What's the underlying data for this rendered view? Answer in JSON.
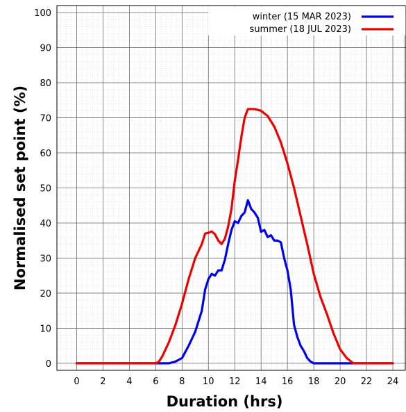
{
  "chart_data": {
    "type": "line",
    "xlabel": "Duration (hrs)",
    "ylabel": "Normalised set point (%)",
    "xlim": [
      -1.5,
      25.0
    ],
    "ylim": [
      -2,
      102
    ],
    "xticks": [
      0,
      2,
      4,
      6,
      8,
      10,
      12,
      14,
      16,
      18,
      20,
      22,
      24
    ],
    "yticks": [
      0,
      10,
      20,
      30,
      40,
      50,
      60,
      70,
      80,
      90,
      100
    ],
    "grid": true,
    "minor_grid": true,
    "legend_position": "top-right",
    "series": [
      {
        "name": "winter (15 MAR 2023)",
        "color": "#0000ee",
        "points": [
          [
            0,
            0
          ],
          [
            6,
            0
          ],
          [
            7,
            0
          ],
          [
            7.5,
            0.5
          ],
          [
            8,
            1.5
          ],
          [
            8.5,
            5
          ],
          [
            9,
            9
          ],
          [
            9.5,
            15
          ],
          [
            9.75,
            21
          ],
          [
            10,
            24
          ],
          [
            10.25,
            25.5
          ],
          [
            10.5,
            25
          ],
          [
            10.75,
            26.5
          ],
          [
            11,
            26.5
          ],
          [
            11.25,
            29.5
          ],
          [
            11.5,
            34
          ],
          [
            11.75,
            38
          ],
          [
            12,
            40.5
          ],
          [
            12.25,
            40
          ],
          [
            12.5,
            42
          ],
          [
            12.75,
            43
          ],
          [
            13,
            46.5
          ],
          [
            13.25,
            44
          ],
          [
            13.5,
            43
          ],
          [
            13.75,
            41.5
          ],
          [
            14,
            37.5
          ],
          [
            14.25,
            38
          ],
          [
            14.5,
            36
          ],
          [
            14.75,
            36.5
          ],
          [
            15,
            35
          ],
          [
            15.25,
            35
          ],
          [
            15.5,
            34.5
          ],
          [
            15.75,
            30
          ],
          [
            16,
            26.5
          ],
          [
            16.25,
            21
          ],
          [
            16.5,
            11
          ],
          [
            16.75,
            7.5
          ],
          [
            17,
            5
          ],
          [
            17.25,
            3.5
          ],
          [
            17.5,
            1.5
          ],
          [
            17.75,
            0.5
          ],
          [
            18,
            0
          ],
          [
            18.5,
            0
          ],
          [
            19,
            0
          ],
          [
            24,
            0
          ]
        ]
      },
      {
        "name": "summer (18 JUL 2023)",
        "color": "#ee0000",
        "points": [
          [
            0,
            0
          ],
          [
            6,
            0
          ],
          [
            6.25,
            0.5
          ],
          [
            6.5,
            2
          ],
          [
            7,
            6
          ],
          [
            7.5,
            11
          ],
          [
            8,
            17
          ],
          [
            8.5,
            24
          ],
          [
            9,
            30
          ],
          [
            9.5,
            34
          ],
          [
            9.75,
            37
          ],
          [
            10,
            37.2
          ],
          [
            10.25,
            37.6
          ],
          [
            10.5,
            36.8
          ],
          [
            10.75,
            35
          ],
          [
            11,
            34
          ],
          [
            11.25,
            35.5
          ],
          [
            11.5,
            39
          ],
          [
            11.75,
            44
          ],
          [
            12,
            52
          ],
          [
            12.25,
            58
          ],
          [
            12.5,
            64.5
          ],
          [
            12.75,
            70
          ],
          [
            13,
            72.5
          ],
          [
            13.5,
            72.5
          ],
          [
            14,
            72
          ],
          [
            14.5,
            70.5
          ],
          [
            15,
            67.5
          ],
          [
            15.5,
            63
          ],
          [
            16,
            57
          ],
          [
            16.5,
            50
          ],
          [
            17,
            42
          ],
          [
            17.5,
            34
          ],
          [
            18,
            25.5
          ],
          [
            18.5,
            19
          ],
          [
            19,
            14
          ],
          [
            19.5,
            8.5
          ],
          [
            20,
            4
          ],
          [
            20.5,
            1.5
          ],
          [
            21,
            0
          ],
          [
            21.5,
            0
          ],
          [
            24,
            0
          ]
        ]
      }
    ]
  }
}
